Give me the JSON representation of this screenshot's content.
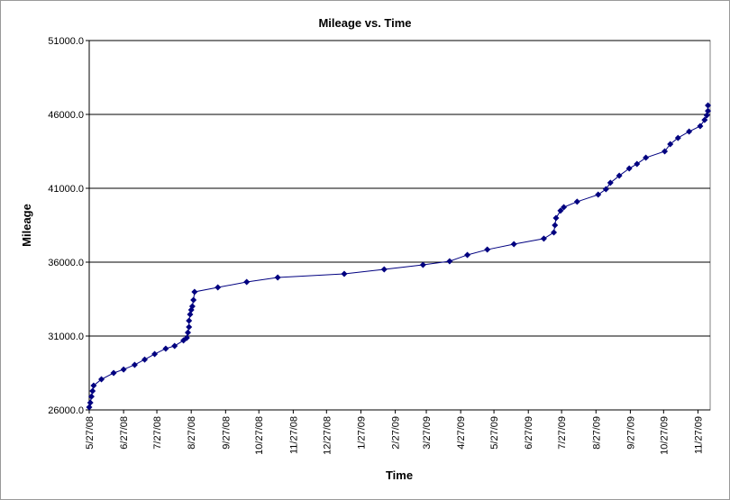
{
  "chart_data": {
    "type": "line",
    "title": "Mileage vs. Time",
    "x_label": "Time",
    "y_label": "Mileage",
    "x": [
      "2008-05-27",
      "2008-05-28",
      "2008-05-29",
      "2008-05-30",
      "2008-05-31",
      "2008-06-07",
      "2008-06-18",
      "2008-06-27",
      "2008-07-07",
      "2008-07-16",
      "2008-07-25",
      "2008-08-04",
      "2008-08-12",
      "2008-08-20",
      "2008-08-23",
      "2008-08-24",
      "2008-08-25",
      "2008-08-25",
      "2008-08-26",
      "2008-08-27",
      "2008-08-28",
      "2008-08-29",
      "2008-08-30",
      "2008-09-20",
      "2008-10-16",
      "2008-11-13",
      "2009-01-12",
      "2009-02-17",
      "2009-03-24",
      "2009-04-17",
      "2009-05-03",
      "2009-05-21",
      "2009-06-14",
      "2009-07-11",
      "2009-07-20",
      "2009-07-21",
      "2009-07-22",
      "2009-07-26",
      "2009-07-29",
      "2009-08-10",
      "2009-08-29",
      "2009-09-05",
      "2009-09-09",
      "2009-09-17",
      "2009-09-26",
      "2009-10-03",
      "2009-10-11",
      "2009-10-28",
      "2009-11-02",
      "2009-11-09",
      "2009-11-19",
      "2009-11-29",
      "2009-12-03",
      "2009-12-05",
      "2009-12-06",
      "2009-12-06"
    ],
    "series": [
      {
        "name": "Mileage",
        "color": "#000080",
        "values": [
          26180,
          26490,
          26910,
          27280,
          27650,
          28070,
          28500,
          28740,
          29050,
          29410,
          29780,
          30150,
          30330,
          30700,
          30880,
          31240,
          31610,
          32040,
          32460,
          32770,
          33010,
          33440,
          33990,
          34290,
          34660,
          34960,
          35210,
          35510,
          35820,
          36060,
          36490,
          36850,
          37220,
          37590,
          38010,
          38500,
          38990,
          39480,
          39720,
          40090,
          40570,
          40940,
          41370,
          41850,
          42340,
          42650,
          43070,
          43500,
          43990,
          44410,
          44840,
          45210,
          45630,
          45940,
          46240,
          46610
        ]
      }
    ],
    "xlim": [
      "2008-05-27",
      "2009-12-08"
    ],
    "xticks": [
      {
        "value": "2008-05-27",
        "label": "5/27/08"
      },
      {
        "value": "2008-06-27",
        "label": "6/27/08"
      },
      {
        "value": "2008-07-27",
        "label": "7/27/08"
      },
      {
        "value": "2008-08-27",
        "label": "8/27/08"
      },
      {
        "value": "2008-09-27",
        "label": "9/27/08"
      },
      {
        "value": "2008-10-27",
        "label": "10/27/08"
      },
      {
        "value": "2008-11-27",
        "label": "11/27/08"
      },
      {
        "value": "2008-12-27",
        "label": "12/27/08"
      },
      {
        "value": "2009-01-27",
        "label": "1/27/09"
      },
      {
        "value": "2009-02-27",
        "label": "2/27/09"
      },
      {
        "value": "2009-03-27",
        "label": "3/27/09"
      },
      {
        "value": "2009-04-27",
        "label": "4/27/09"
      },
      {
        "value": "2009-05-27",
        "label": "5/27/09"
      },
      {
        "value": "2009-06-27",
        "label": "6/27/09"
      },
      {
        "value": "2009-07-27",
        "label": "7/27/09"
      },
      {
        "value": "2009-08-27",
        "label": "8/27/09"
      },
      {
        "value": "2009-09-27",
        "label": "9/27/09"
      },
      {
        "value": "2009-10-27",
        "label": "10/27/09"
      },
      {
        "value": "2009-11-27",
        "label": "11/27/09"
      }
    ],
    "ylim": [
      26000,
      51000
    ],
    "yticks": [
      {
        "value": 26000,
        "label": "26000.0"
      },
      {
        "value": 31000,
        "label": "31000.0"
      },
      {
        "value": 36000,
        "label": "36000.0"
      },
      {
        "value": 41000,
        "label": "41000.0"
      },
      {
        "value": 46000,
        "label": "46000.0"
      },
      {
        "value": 51000,
        "label": "51000.0"
      }
    ],
    "grid": true
  }
}
